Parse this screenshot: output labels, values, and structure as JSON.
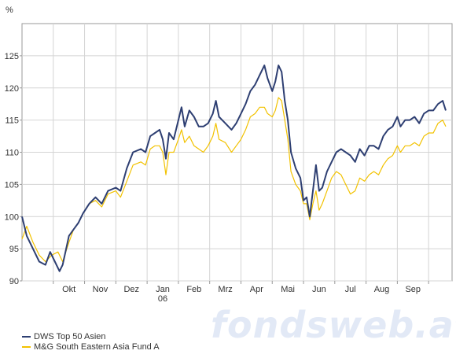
{
  "chart_data": {
    "type": "line",
    "ylabel": "%",
    "ylim": [
      90,
      130
    ],
    "yticks": [
      90,
      95,
      100,
      105,
      110,
      115,
      120,
      125
    ],
    "month_labels": [
      "Okt",
      "Nov",
      "Dez",
      "Jan",
      "Feb",
      "Mrz",
      "Apr",
      "Mai",
      "Jun",
      "Jul",
      "Aug",
      "Sep"
    ],
    "year_label": "06",
    "grid": true,
    "legend_position": "bottom-left",
    "x_note": "x = months since start of Sep 2005",
    "series": [
      {
        "name": "DWS Top 50 Asien",
        "color": "#2e3f72",
        "points": [
          [
            0.0,
            100
          ],
          [
            0.15,
            97
          ],
          [
            0.35,
            95
          ],
          [
            0.55,
            93
          ],
          [
            0.75,
            92.5
          ],
          [
            0.9,
            94.5
          ],
          [
            1.05,
            93
          ],
          [
            1.2,
            91.5
          ],
          [
            1.3,
            92.5
          ],
          [
            1.5,
            97
          ],
          [
            1.65,
            98
          ],
          [
            1.8,
            99
          ],
          [
            1.95,
            100.5
          ],
          [
            2.15,
            102
          ],
          [
            2.35,
            103
          ],
          [
            2.55,
            102
          ],
          [
            2.75,
            104
          ],
          [
            3.0,
            104.5
          ],
          [
            3.15,
            104
          ],
          [
            3.35,
            107.5
          ],
          [
            3.55,
            110
          ],
          [
            3.8,
            110.5
          ],
          [
            3.95,
            110
          ],
          [
            4.1,
            112.5
          ],
          [
            4.25,
            113
          ],
          [
            4.4,
            113.5
          ],
          [
            4.5,
            112
          ],
          [
            4.6,
            109
          ],
          [
            4.7,
            113
          ],
          [
            4.85,
            112
          ],
          [
            5.0,
            115
          ],
          [
            5.1,
            117
          ],
          [
            5.2,
            114
          ],
          [
            5.35,
            116.5
          ],
          [
            5.5,
            115.5
          ],
          [
            5.65,
            114
          ],
          [
            5.8,
            114
          ],
          [
            5.95,
            114.5
          ],
          [
            6.1,
            116
          ],
          [
            6.2,
            118
          ],
          [
            6.3,
            115.5
          ],
          [
            6.5,
            114.5
          ],
          [
            6.7,
            113.5
          ],
          [
            6.85,
            114.5
          ],
          [
            7.0,
            116
          ],
          [
            7.15,
            117.5
          ],
          [
            7.3,
            119.5
          ],
          [
            7.45,
            120.5
          ],
          [
            7.6,
            122
          ],
          [
            7.75,
            123.5
          ],
          [
            7.85,
            121.5
          ],
          [
            8.0,
            119.5
          ],
          [
            8.1,
            121
          ],
          [
            8.2,
            123.5
          ],
          [
            8.3,
            122.5
          ],
          [
            8.4,
            118
          ],
          [
            8.5,
            115
          ],
          [
            8.6,
            110
          ],
          [
            8.75,
            107.5
          ],
          [
            8.9,
            106
          ],
          [
            9.0,
            102.5
          ],
          [
            9.1,
            103
          ],
          [
            9.2,
            100
          ],
          [
            9.3,
            104
          ],
          [
            9.4,
            108
          ],
          [
            9.5,
            104
          ],
          [
            9.6,
            104.5
          ],
          [
            9.75,
            107
          ],
          [
            9.9,
            108.5
          ],
          [
            10.05,
            110
          ],
          [
            10.2,
            110.5
          ],
          [
            10.35,
            110
          ],
          [
            10.5,
            109.5
          ],
          [
            10.65,
            108.5
          ],
          [
            10.8,
            110.5
          ],
          [
            10.95,
            109.5
          ],
          [
            11.1,
            111
          ],
          [
            11.25,
            111
          ],
          [
            11.4,
            110.5
          ],
          [
            11.55,
            112.5
          ],
          [
            11.7,
            113.5
          ],
          [
            11.85,
            114
          ],
          [
            12.0,
            115.5
          ],
          [
            12.1,
            114
          ],
          [
            12.25,
            115
          ],
          [
            12.4,
            115
          ],
          [
            12.55,
            115.5
          ],
          [
            12.7,
            114.5
          ],
          [
            12.85,
            116
          ],
          [
            13.0,
            116.5
          ],
          [
            13.15,
            116.5
          ],
          [
            13.3,
            117.5
          ],
          [
            13.45,
            118
          ],
          [
            13.55,
            116.5
          ]
        ]
      },
      {
        "name": "M&G South Eastern Asia Fund A",
        "color": "#f2c200",
        "points": [
          [
            0.0,
            96.5
          ],
          [
            0.15,
            98.5
          ],
          [
            0.35,
            96
          ],
          [
            0.55,
            94
          ],
          [
            0.75,
            93
          ],
          [
            0.95,
            94
          ],
          [
            1.15,
            94.5
          ],
          [
            1.3,
            93
          ],
          [
            1.5,
            96
          ],
          [
            1.65,
            98
          ],
          [
            1.8,
            99
          ],
          [
            1.95,
            100.5
          ],
          [
            2.15,
            102
          ],
          [
            2.35,
            102.5
          ],
          [
            2.55,
            101.5
          ],
          [
            2.75,
            103.5
          ],
          [
            3.0,
            104
          ],
          [
            3.15,
            103
          ],
          [
            3.35,
            105.5
          ],
          [
            3.55,
            108
          ],
          [
            3.8,
            108.5
          ],
          [
            3.95,
            108
          ],
          [
            4.1,
            110.5
          ],
          [
            4.25,
            111
          ],
          [
            4.4,
            111
          ],
          [
            4.5,
            110
          ],
          [
            4.6,
            106.5
          ],
          [
            4.7,
            110
          ],
          [
            4.85,
            110
          ],
          [
            5.0,
            112
          ],
          [
            5.1,
            113.5
          ],
          [
            5.2,
            111.5
          ],
          [
            5.35,
            112.5
          ],
          [
            5.5,
            111
          ],
          [
            5.65,
            110.5
          ],
          [
            5.8,
            110
          ],
          [
            5.95,
            111
          ],
          [
            6.1,
            112.5
          ],
          [
            6.2,
            114.5
          ],
          [
            6.3,
            112
          ],
          [
            6.5,
            111.5
          ],
          [
            6.7,
            110
          ],
          [
            6.85,
            111
          ],
          [
            7.0,
            112
          ],
          [
            7.15,
            113.5
          ],
          [
            7.3,
            115.5
          ],
          [
            7.45,
            116
          ],
          [
            7.6,
            117
          ],
          [
            7.75,
            117
          ],
          [
            7.85,
            116
          ],
          [
            8.0,
            115.5
          ],
          [
            8.1,
            116.5
          ],
          [
            8.2,
            118.5
          ],
          [
            8.3,
            118
          ],
          [
            8.4,
            115
          ],
          [
            8.5,
            112
          ],
          [
            8.6,
            107
          ],
          [
            8.75,
            105
          ],
          [
            8.9,
            104
          ],
          [
            9.0,
            102
          ],
          [
            9.1,
            102
          ],
          [
            9.2,
            99.5
          ],
          [
            9.3,
            102
          ],
          [
            9.4,
            104
          ],
          [
            9.5,
            101
          ],
          [
            9.6,
            102
          ],
          [
            9.75,
            104
          ],
          [
            9.9,
            106
          ],
          [
            10.05,
            107
          ],
          [
            10.2,
            106.5
          ],
          [
            10.35,
            105
          ],
          [
            10.5,
            103.5
          ],
          [
            10.65,
            104
          ],
          [
            10.8,
            106
          ],
          [
            10.95,
            105.5
          ],
          [
            11.1,
            106.5
          ],
          [
            11.25,
            107
          ],
          [
            11.4,
            106.5
          ],
          [
            11.55,
            108
          ],
          [
            11.7,
            109
          ],
          [
            11.85,
            109.5
          ],
          [
            12.0,
            111
          ],
          [
            12.1,
            110
          ],
          [
            12.25,
            111
          ],
          [
            12.4,
            111
          ],
          [
            12.55,
            111.5
          ],
          [
            12.7,
            111
          ],
          [
            12.85,
            112.5
          ],
          [
            13.0,
            113
          ],
          [
            13.15,
            113
          ],
          [
            13.3,
            114.5
          ],
          [
            13.45,
            115
          ],
          [
            13.55,
            114
          ]
        ]
      }
    ]
  },
  "watermark": "fondsweb.at"
}
